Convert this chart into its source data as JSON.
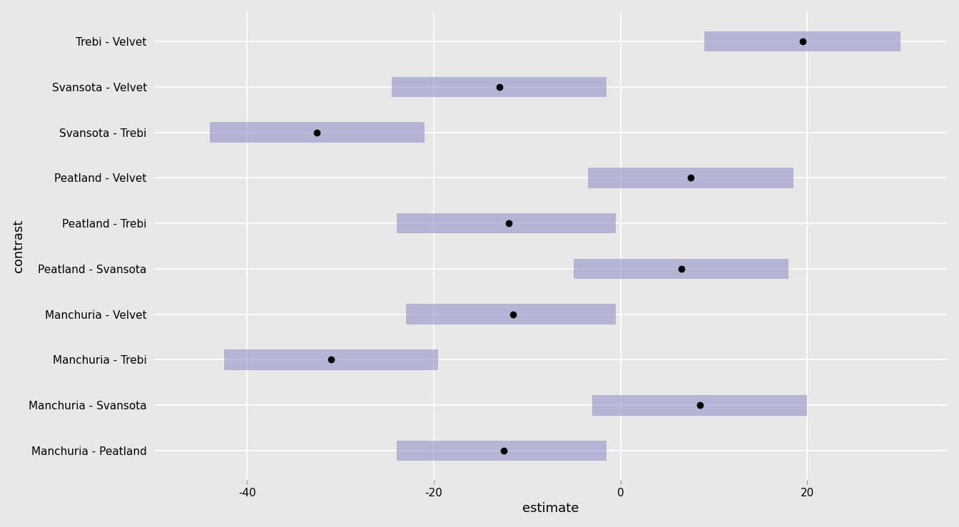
{
  "contrasts": [
    "Manchuria - Peatland",
    "Manchuria - Svansota",
    "Manchuria - Trebi",
    "Manchuria - Velvet",
    "Peatland - Svansota",
    "Peatland - Trebi",
    "Peatland - Velvet",
    "Svansota - Trebi",
    "Svansota - Velvet",
    "Trebi - Velvet"
  ],
  "estimates": [
    -12.5,
    8.5,
    -31.0,
    -11.5,
    6.5,
    -12.0,
    7.5,
    -32.5,
    -13.0,
    19.5
  ],
  "lower": [
    -24.0,
    -3.0,
    -42.5,
    -23.0,
    -5.0,
    -24.0,
    -3.5,
    -44.0,
    -24.5,
    9.0
  ],
  "upper": [
    -1.5,
    20.0,
    -19.5,
    -0.5,
    18.0,
    -0.5,
    18.5,
    -21.0,
    -1.5,
    30.0
  ],
  "bar_color": "#9999cc",
  "bar_alpha": 0.65,
  "point_color": "black",
  "point_size": 7,
  "bar_height": 0.45,
  "background_color": "#e8e8e8",
  "panel_background": "#e8e8e8",
  "grid_color": "#ffffff",
  "xlabel": "estimate",
  "ylabel": "contrast",
  "xlim": [
    -50,
    35
  ],
  "xticks": [
    -40,
    -20,
    0,
    20
  ],
  "label_fontsize": 13,
  "tick_fontsize": 11,
  "ylabel_fontsize": 13
}
